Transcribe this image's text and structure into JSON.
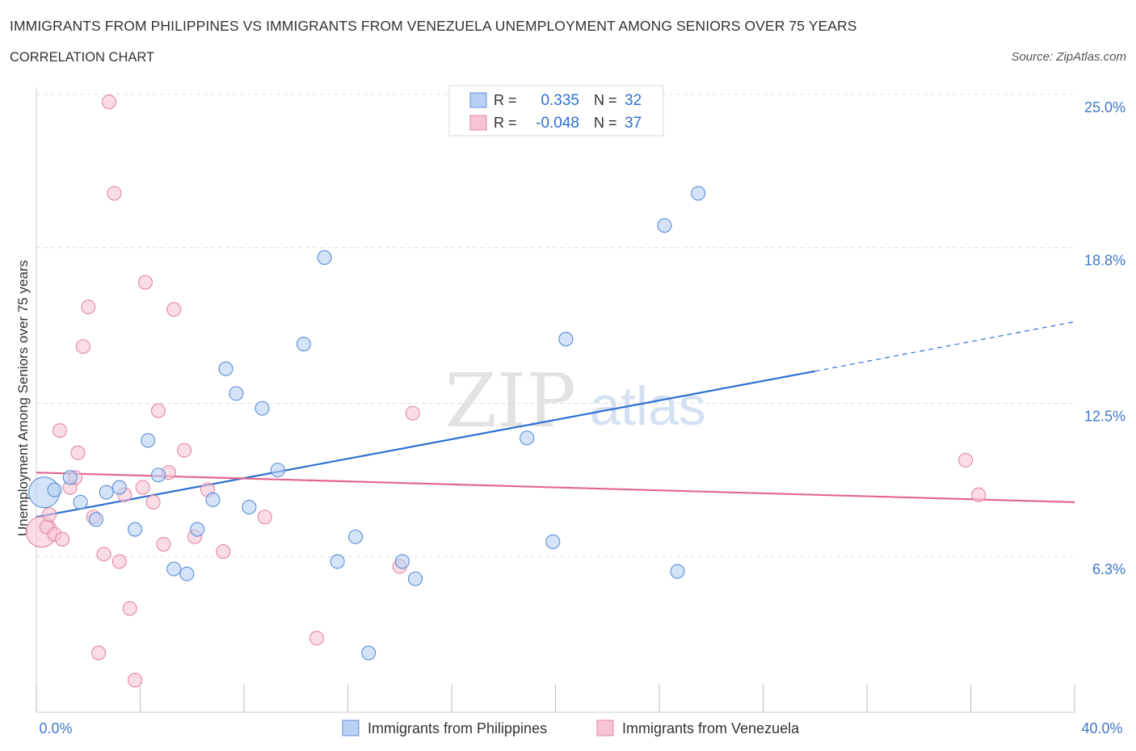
{
  "header": {
    "title": "IMMIGRANTS FROM PHILIPPINES VS IMMIGRANTS FROM VENEZUELA UNEMPLOYMENT AMONG SENIORS OVER 75 YEARS",
    "subtitle": "CORRELATION CHART",
    "source": "Source: ZipAtlas.com"
  },
  "stats_legend": {
    "rows": [
      {
        "r_label": "R =",
        "r_value": "0.335",
        "n_label": "N =",
        "n_value": "32"
      },
      {
        "r_label": "R =",
        "r_value": "-0.048",
        "n_label": "N =",
        "n_value": "37"
      }
    ]
  },
  "watermark": {
    "zip": "ZIP",
    "atlas": "atlas"
  },
  "colors": {
    "philippines_fill": "#b8d0f4",
    "philippines_stroke": "#5b8fd8",
    "philippines_line": "#2d6fd1",
    "venezuela_fill": "#f6c4d4",
    "venezuela_stroke": "#e487a6",
    "venezuela_line": "#e0668f",
    "axis_label": "#3f77c9",
    "grid": "#dddddd"
  },
  "chart_data": {
    "type": "scatter",
    "xlabel": "Unemployment Among Seniors over 75 years",
    "ylabel": "Unemployment Among Seniors over 75 years",
    "x_tick_labels": [
      "0.0%",
      "40.0%"
    ],
    "y_tick_labels": [
      "25.0%",
      "18.8%",
      "12.5%",
      "6.3%"
    ],
    "y_ticks": [
      25.0,
      18.8,
      12.5,
      6.3
    ],
    "xlim": [
      0,
      40
    ],
    "ylim": [
      0,
      25.5
    ],
    "grid": true,
    "legend_position": "bottom-center",
    "series": [
      {
        "name": "Immigrants from Philippines",
        "r": 0.335,
        "n": 32,
        "trend": {
          "x0": 0,
          "y0": 7.9,
          "x1": 30,
          "y1": 13.8,
          "x1_dashed_end": 40,
          "y1_dashed_end": 15.8
        },
        "points": [
          {
            "x": 0.3,
            "y": 8.9,
            "big": true
          },
          {
            "x": 0.7,
            "y": 9.0
          },
          {
            "x": 1.3,
            "y": 9.5
          },
          {
            "x": 1.7,
            "y": 8.5
          },
          {
            "x": 2.3,
            "y": 7.8
          },
          {
            "x": 2.7,
            "y": 8.9
          },
          {
            "x": 3.2,
            "y": 9.1
          },
          {
            "x": 3.8,
            "y": 7.4
          },
          {
            "x": 4.3,
            "y": 11.0
          },
          {
            "x": 4.7,
            "y": 9.6
          },
          {
            "x": 5.3,
            "y": 5.8
          },
          {
            "x": 5.8,
            "y": 5.6
          },
          {
            "x": 6.2,
            "y": 7.4
          },
          {
            "x": 6.8,
            "y": 8.6
          },
          {
            "x": 7.3,
            "y": 13.9
          },
          {
            "x": 7.7,
            "y": 12.9
          },
          {
            "x": 8.2,
            "y": 8.3
          },
          {
            "x": 8.7,
            "y": 12.3
          },
          {
            "x": 9.3,
            "y": 9.8
          },
          {
            "x": 10.3,
            "y": 14.9
          },
          {
            "x": 11.1,
            "y": 18.4
          },
          {
            "x": 11.6,
            "y": 6.1
          },
          {
            "x": 12.3,
            "y": 7.1
          },
          {
            "x": 12.8,
            "y": 2.4
          },
          {
            "x": 14.1,
            "y": 6.1
          },
          {
            "x": 14.6,
            "y": 5.4
          },
          {
            "x": 18.9,
            "y": 11.1
          },
          {
            "x": 19.9,
            "y": 6.9
          },
          {
            "x": 20.4,
            "y": 15.1
          },
          {
            "x": 24.2,
            "y": 19.7
          },
          {
            "x": 24.7,
            "y": 5.7
          },
          {
            "x": 25.5,
            "y": 21.0
          }
        ]
      },
      {
        "name": "Immigrants from Venezuela",
        "r": -0.048,
        "n": 37,
        "trend": {
          "x0": 0,
          "y0": 9.7,
          "x1": 40,
          "y1": 8.5
        },
        "points": [
          {
            "x": 0.2,
            "y": 7.3,
            "big": true
          },
          {
            "x": 0.4,
            "y": 7.5
          },
          {
            "x": 0.5,
            "y": 8.0
          },
          {
            "x": 0.7,
            "y": 7.2
          },
          {
            "x": 0.9,
            "y": 11.4
          },
          {
            "x": 1.0,
            "y": 7.0
          },
          {
            "x": 1.3,
            "y": 9.1
          },
          {
            "x": 1.5,
            "y": 9.5
          },
          {
            "x": 1.6,
            "y": 10.5
          },
          {
            "x": 1.8,
            "y": 14.8
          },
          {
            "x": 2.0,
            "y": 16.4
          },
          {
            "x": 2.2,
            "y": 7.9
          },
          {
            "x": 2.4,
            "y": 2.4
          },
          {
            "x": 2.6,
            "y": 6.4
          },
          {
            "x": 2.8,
            "y": 24.7
          },
          {
            "x": 3.0,
            "y": 21.0
          },
          {
            "x": 3.2,
            "y": 6.1
          },
          {
            "x": 3.4,
            "y": 8.8
          },
          {
            "x": 3.6,
            "y": 4.2
          },
          {
            "x": 3.8,
            "y": 1.3
          },
          {
            "x": 4.1,
            "y": 9.1
          },
          {
            "x": 4.2,
            "y": 17.4
          },
          {
            "x": 4.5,
            "y": 8.5
          },
          {
            "x": 4.7,
            "y": 12.2
          },
          {
            "x": 4.9,
            "y": 6.8
          },
          {
            "x": 5.1,
            "y": 9.7
          },
          {
            "x": 5.3,
            "y": 16.3
          },
          {
            "x": 5.7,
            "y": 10.6
          },
          {
            "x": 6.1,
            "y": 7.1
          },
          {
            "x": 6.6,
            "y": 9.0
          },
          {
            "x": 7.2,
            "y": 6.5
          },
          {
            "x": 8.8,
            "y": 7.9
          },
          {
            "x": 10.8,
            "y": 3.0
          },
          {
            "x": 14.0,
            "y": 5.9
          },
          {
            "x": 14.5,
            "y": 12.1
          },
          {
            "x": 35.8,
            "y": 10.2
          },
          {
            "x": 36.3,
            "y": 8.8
          }
        ]
      }
    ]
  }
}
